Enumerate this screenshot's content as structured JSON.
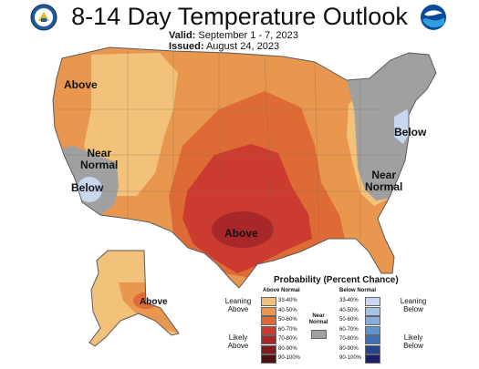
{
  "header": {
    "title": "8-14 Day Temperature Outlook",
    "valid_label": "Valid:",
    "valid_value": "September 1 - 7, 2023",
    "issued_label": "Issued:",
    "issued_value": "August 24, 2023"
  },
  "logos": {
    "left": "doc-seal-icon",
    "right": "noaa-logo-icon"
  },
  "map_labels": {
    "above_nw": "Above",
    "near_normal_ca": [
      "Near",
      "Normal"
    ],
    "below_ca": "Below",
    "below_ne": "Below",
    "near_normal_se": [
      "Near",
      "Normal"
    ],
    "above_south": "Above",
    "above_ak": "Above"
  },
  "legend": {
    "title": "Probability (Percent Chance)",
    "above_header": "Above Normal",
    "below_header": "Below Normal",
    "leaning_above": [
      "Leaning",
      "Above"
    ],
    "likely_above": [
      "Likely",
      "Above"
    ],
    "leaning_below": [
      "Leaning",
      "Below"
    ],
    "likely_below": [
      "Likely",
      "Below"
    ],
    "near_normal": [
      "Near",
      "Normal"
    ],
    "ranges": [
      "33-40%",
      "40-50%",
      "50-60%",
      "60-70%",
      "70-80%",
      "80-90%",
      "90-100%"
    ],
    "above_colors": [
      "#f2c27a",
      "#e9974f",
      "#de6b36",
      "#cc3b2f",
      "#a8282a",
      "#7e1c20",
      "#4e1013"
    ],
    "below_colors": [
      "#c9d8ee",
      "#a9c3e6",
      "#86aedc",
      "#5d93cf",
      "#3b72b6",
      "#23478c",
      "#1b1f6b"
    ],
    "near_color": "#a0a0a0"
  }
}
